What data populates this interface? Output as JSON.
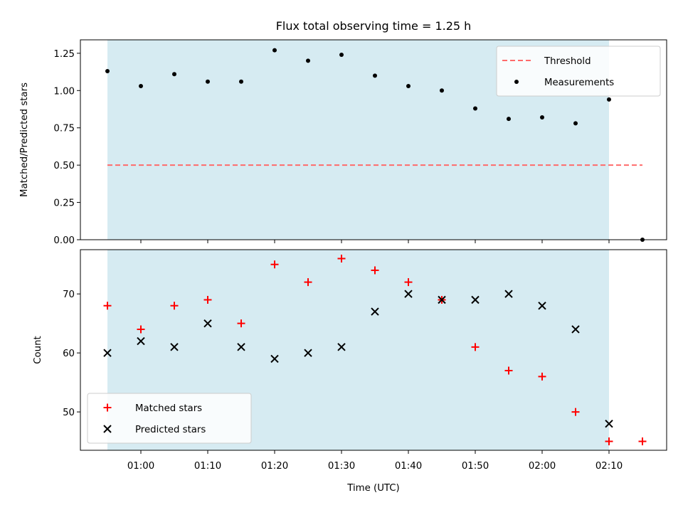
{
  "chart_data": {
    "title": "Flux total observing time = 1.25 h",
    "xlabel": "Time (UTC)",
    "x_ticks": [
      "01:00",
      "01:10",
      "01:20",
      "01:30",
      "01:40",
      "01:50",
      "02:00",
      "02:10"
    ],
    "observing_window": {
      "start": "00:55",
      "end": "02:10",
      "color": "#add8e6"
    },
    "panels": [
      {
        "type": "scatter",
        "ylabel": "Matched/Predicted stars",
        "ylim": [
          0,
          1.34
        ],
        "y_ticks": [
          "0.00",
          "0.25",
          "0.50",
          "0.75",
          "1.00",
          "1.25"
        ],
        "legend_position": "top-right",
        "threshold": {
          "name": "Threshold",
          "value": 0.5,
          "x_start": "00:55",
          "x_end": "02:15",
          "color": "#ff6b6b"
        },
        "series": [
          {
            "name": "Measurements",
            "color": "#000000",
            "marker": "dot",
            "x": [
              "00:55",
              "01:00",
              "01:05",
              "01:10",
              "01:15",
              "01:20",
              "01:25",
              "01:30",
              "01:35",
              "01:40",
              "01:45",
              "01:50",
              "01:55",
              "02:00",
              "02:05",
              "02:10",
              "02:15"
            ],
            "y": [
              1.13,
              1.03,
              1.11,
              1.06,
              1.06,
              1.27,
              1.2,
              1.24,
              1.1,
              1.03,
              1.0,
              0.88,
              0.81,
              0.82,
              0.78,
              0.94,
              0.0
            ]
          }
        ]
      },
      {
        "type": "scatter",
        "ylabel": "Count",
        "ylim": [
          43.5,
          77.5
        ],
        "y_ticks": [
          "50",
          "60",
          "70"
        ],
        "legend_position": "bottom-left",
        "series": [
          {
            "name": "Matched stars",
            "color": "#ff0000",
            "marker": "plus",
            "x": [
              "00:55",
              "01:00",
              "01:05",
              "01:10",
              "01:15",
              "01:20",
              "01:25",
              "01:30",
              "01:35",
              "01:40",
              "01:45",
              "01:50",
              "01:55",
              "02:00",
              "02:05",
              "02:10",
              "02:15"
            ],
            "y": [
              68,
              64,
              68,
              69,
              65,
              75,
              72,
              76,
              74,
              72,
              69,
              61,
              57,
              56,
              50,
              45,
              45
            ]
          },
          {
            "name": "Predicted stars",
            "color": "#000000",
            "marker": "x",
            "x": [
              "00:55",
              "01:00",
              "01:05",
              "01:10",
              "01:15",
              "01:20",
              "01:25",
              "01:30",
              "01:35",
              "01:40",
              "01:45",
              "01:50",
              "01:55",
              "02:00",
              "02:05",
              "02:10"
            ],
            "y": [
              60,
              62,
              61,
              65,
              61,
              59,
              60,
              61,
              67,
              70,
              69,
              69,
              70,
              68,
              64,
              48
            ]
          }
        ]
      }
    ]
  }
}
